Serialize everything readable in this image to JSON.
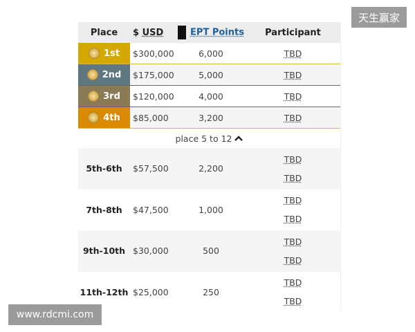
{
  "header": {
    "place": "Place",
    "usd_prefix": "$",
    "usd": "USD",
    "ept": "EPT Points",
    "participant": "Participant"
  },
  "top_rows": [
    {
      "place": "1st",
      "usd": "$300,000",
      "points": "6,000",
      "participant": "TBD",
      "color": "#d4a800",
      "border": "#d9b54a"
    },
    {
      "place": "2nd",
      "usd": "$175,000",
      "points": "5,000",
      "participant": "TBD",
      "color": "#5e7780",
      "border": "#666"
    },
    {
      "place": "3rd",
      "usd": "$120,000",
      "points": "4,000",
      "participant": "TBD",
      "color": "#8a7a55",
      "border": "#666"
    },
    {
      "place": "4th",
      "usd": "$85,000",
      "points": "3,200",
      "participant": "TBD",
      "color": "#d98a00",
      "border": "#d9b54a"
    }
  ],
  "toggle": {
    "label": "place 5 to 12",
    "icon": "chevron-up-icon"
  },
  "groups": [
    {
      "place": "5th-6th",
      "usd": "$57,500",
      "points": "2,200",
      "participants": [
        "TBD",
        "TBD"
      ]
    },
    {
      "place": "7th-8th",
      "usd": "$47,500",
      "points": "1,000",
      "participants": [
        "TBD",
        "TBD"
      ]
    },
    {
      "place": "9th-10th",
      "usd": "$30,000",
      "points": "500",
      "participants": [
        "TBD",
        "TBD"
      ]
    },
    {
      "place": "11th-12th",
      "usd": "$25,000",
      "points": "250",
      "participants": [
        "TBD",
        "TBD"
      ]
    }
  ],
  "watermarks": {
    "top": "天生赢家",
    "bottom": "www.rdcmi.com"
  }
}
